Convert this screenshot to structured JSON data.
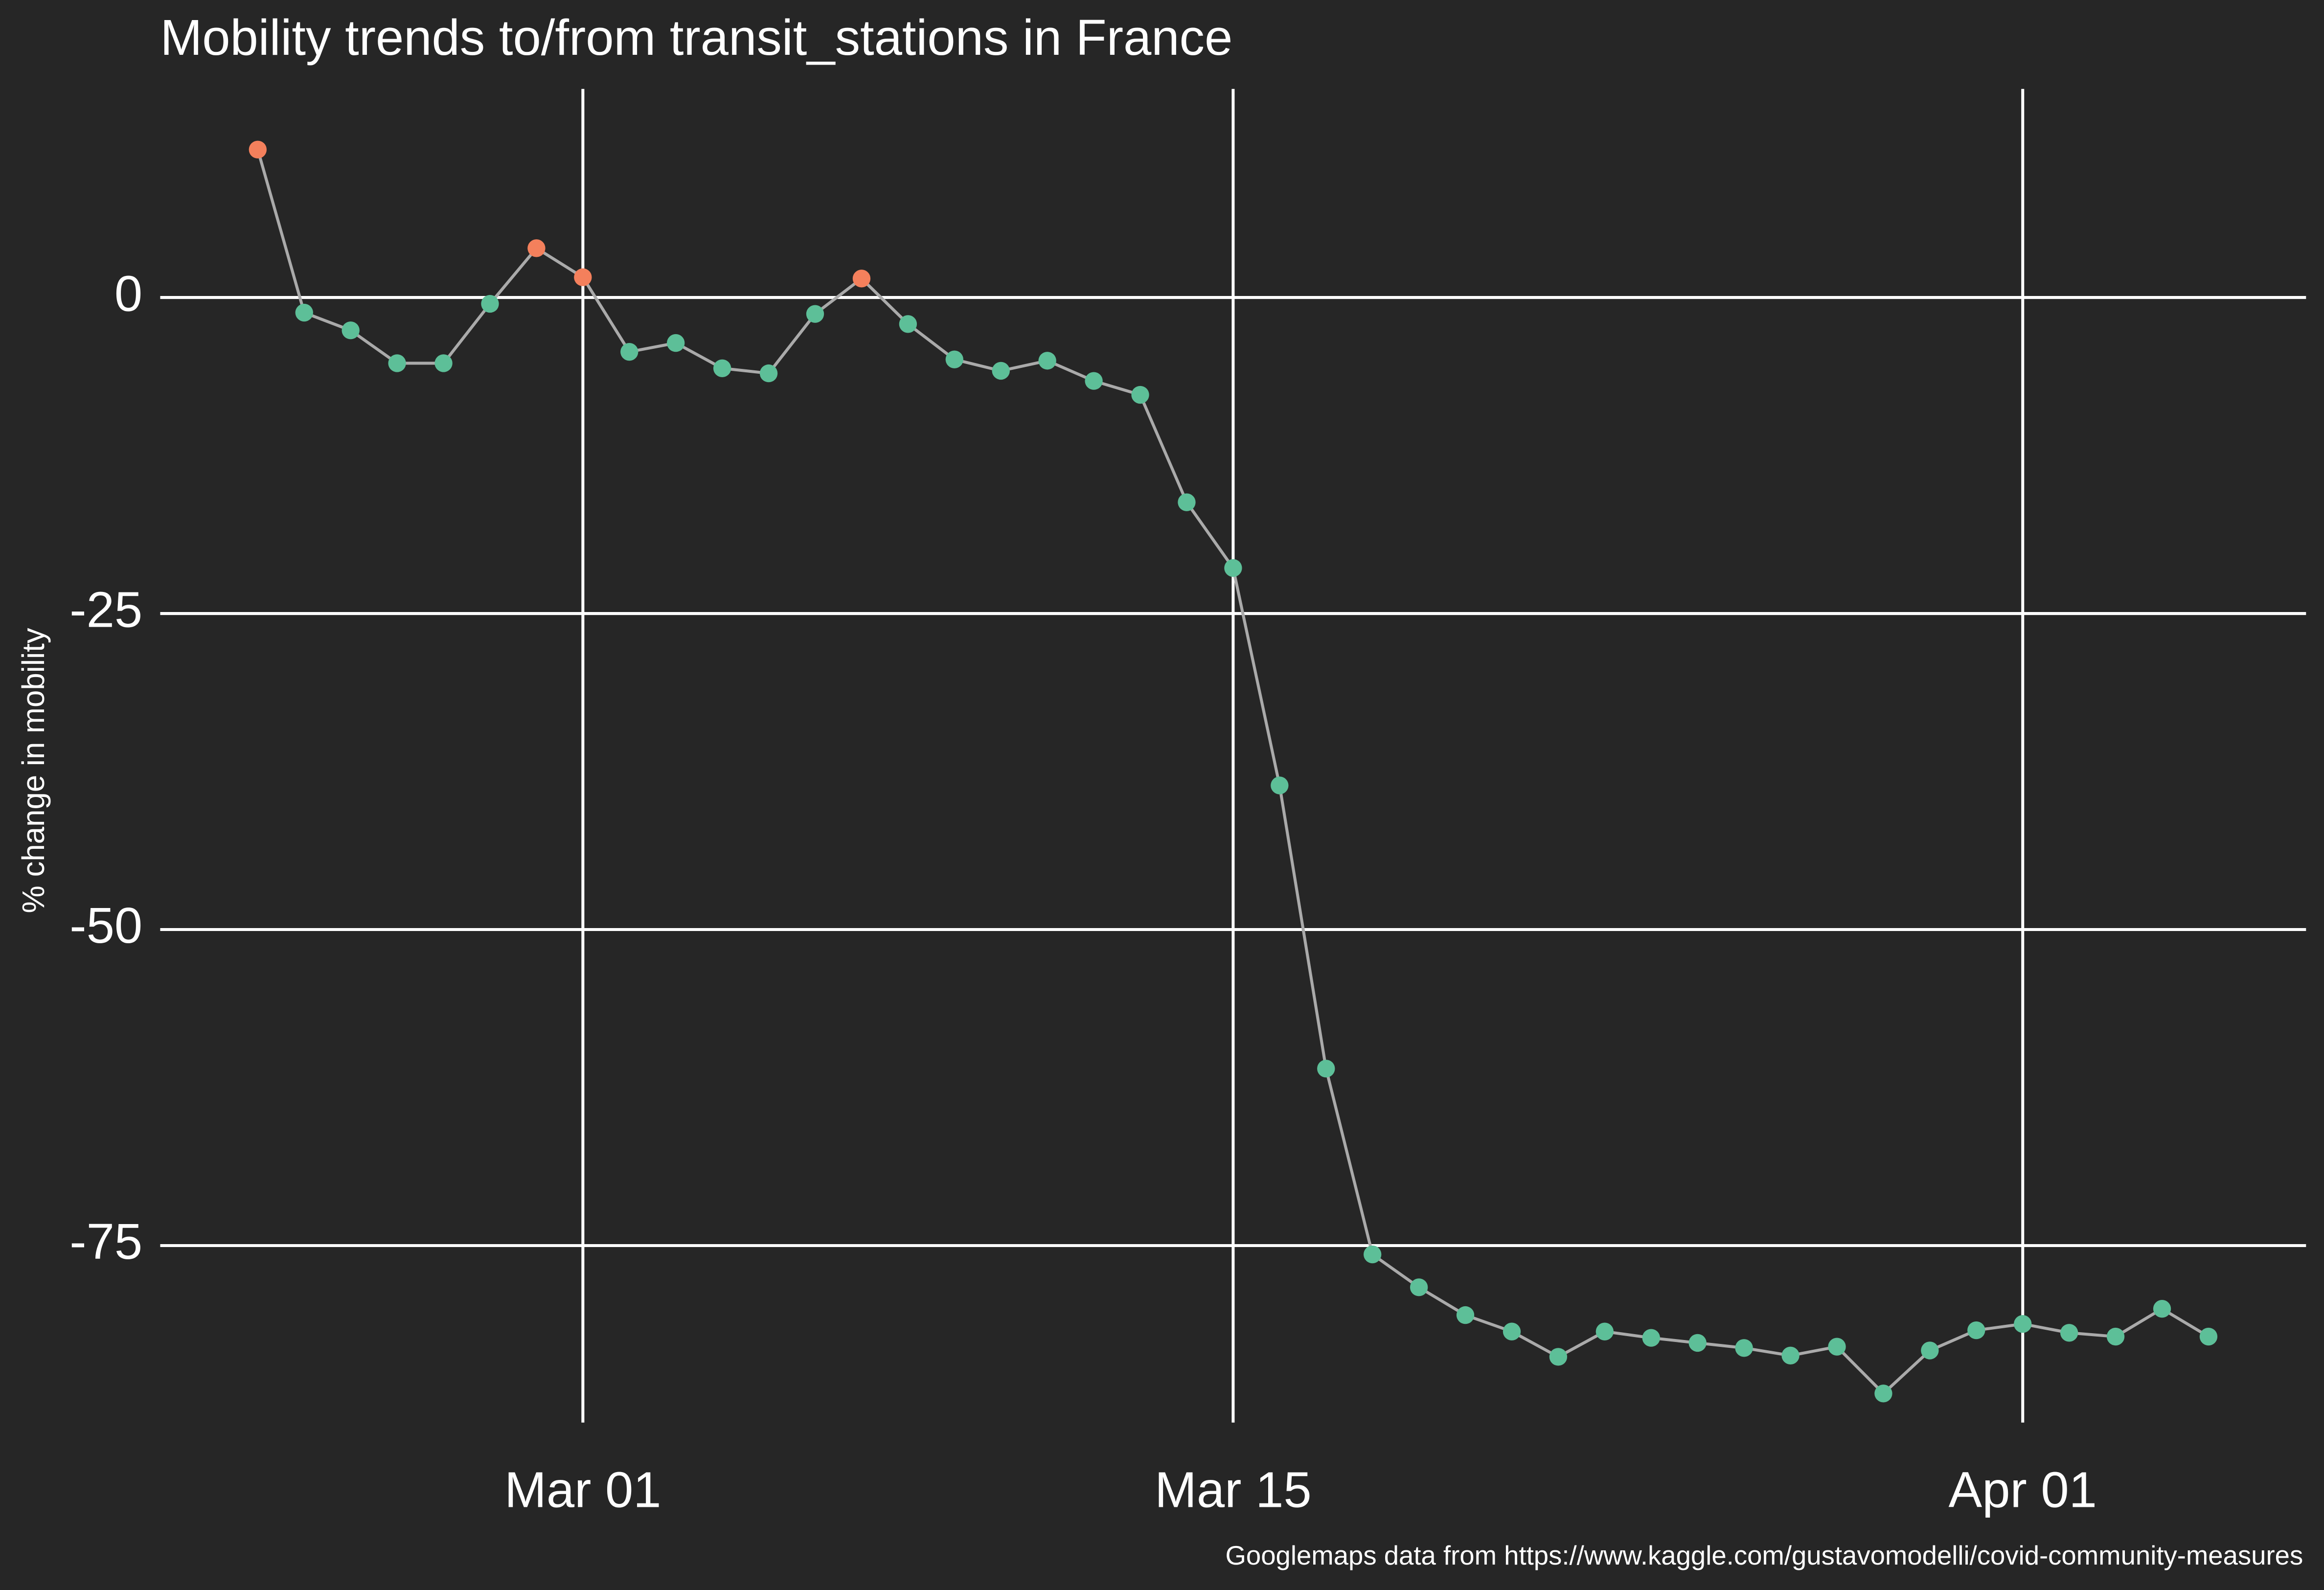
{
  "chart_data": {
    "type": "line",
    "title": "Mobility trends to/from transit_stations in France",
    "y_label": "% change in mobility",
    "caption": "Googlemaps data from https://www.kaggle.com/gustavomodelli/covid-community-measures",
    "x": [
      "Feb 23",
      "Feb 24",
      "Feb 25",
      "Feb 26",
      "Feb 27",
      "Feb 28",
      "Feb 29",
      "Mar 01",
      "Mar 02",
      "Mar 03",
      "Mar 04",
      "Mar 05",
      "Mar 06",
      "Mar 07",
      "Mar 08",
      "Mar 09",
      "Mar 10",
      "Mar 11",
      "Mar 12",
      "Mar 13",
      "Mar 14",
      "Mar 15",
      "Mar 16",
      "Mar 17",
      "Mar 18",
      "Mar 19",
      "Mar 20",
      "Mar 21",
      "Mar 22",
      "Mar 23",
      "Mar 24",
      "Mar 25",
      "Mar 26",
      "Mar 27",
      "Mar 28",
      "Mar 29",
      "Mar 30",
      "Mar 31",
      "Apr 01",
      "Apr 02",
      "Apr 03",
      "Apr 04",
      "Apr 05"
    ],
    "values": [
      11.7,
      -1.2,
      -2.6,
      -5.2,
      -5.2,
      -0.5,
      3.9,
      1.6,
      -4.3,
      -3.6,
      -5.6,
      -6.0,
      -1.3,
      1.5,
      -2.1,
      -4.9,
      -5.8,
      -5.0,
      -6.6,
      -7.7,
      -16.2,
      -21.4,
      -38.6,
      -61.0,
      -75.7,
      -78.3,
      -80.5,
      -81.8,
      -83.8,
      -81.8,
      -82.3,
      -82.7,
      -83.1,
      -83.7,
      -83.0,
      -86.7,
      -83.3,
      -81.7,
      -81.2,
      -81.9,
      -82.2,
      -80.0,
      -82.2
    ],
    "xticks": [
      "Mar 01",
      "Mar 15",
      "Apr 01"
    ],
    "ylim": [
      -89,
      16.5
    ],
    "yticks": [
      -75,
      -50,
      -25,
      0
    ],
    "grid": true,
    "line_color": "#aaaaaa",
    "positive_color": "#f4805c",
    "negative_color": "#5dbf98",
    "background": "#262626"
  }
}
